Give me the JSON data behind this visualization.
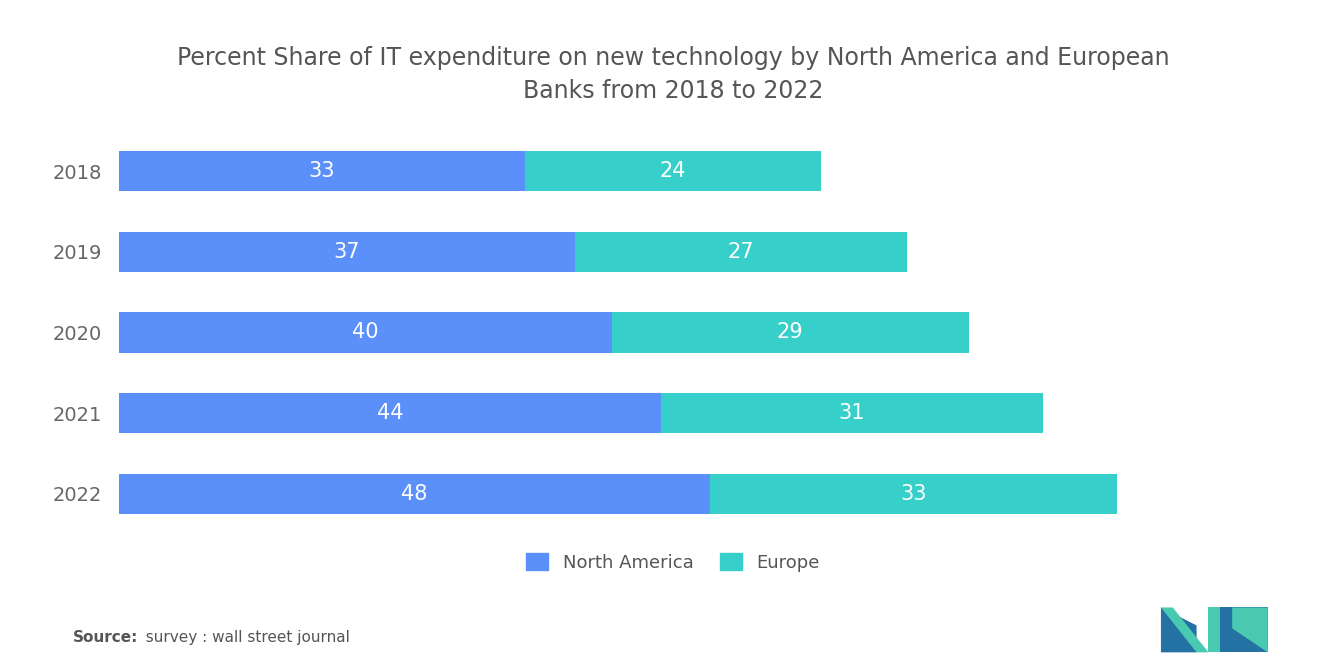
{
  "title": "Percent Share of IT expenditure on new technology by North America and European\nBanks from 2018 to 2022",
  "years": [
    "2018",
    "2019",
    "2020",
    "2021",
    "2022"
  ],
  "north_america": [
    33,
    37,
    40,
    44,
    48
  ],
  "europe": [
    24,
    27,
    29,
    31,
    33
  ],
  "na_color": "#5B8FF9",
  "eu_color": "#36CFC9",
  "background_color": "#ffffff",
  "bar_height": 0.5,
  "title_fontsize": 17,
  "label_fontsize": 15,
  "tick_fontsize": 14,
  "legend_fontsize": 13,
  "source_bold": "Source:",
  "source_rest": "  survey : wall street journal",
  "na_label": "North America",
  "eu_label": "Europe",
  "xlim": [
    0,
    90
  ],
  "logo_dark": "#2471A3",
  "logo_teal": "#48C9B0"
}
